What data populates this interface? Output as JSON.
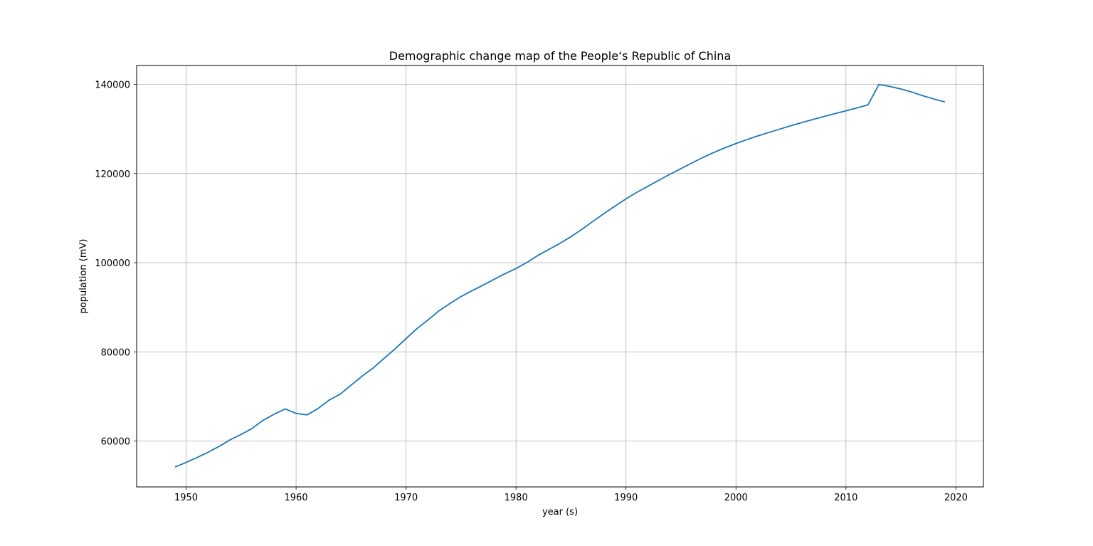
{
  "chart_data": {
    "type": "line",
    "title": "Demographic change map of the People‘s Republic of China",
    "xlabel": "year (s)",
    "ylabel": "population (mV)",
    "xlim": [
      1945.5,
      2022.5
    ],
    "ylim": [
      49700,
      144250
    ],
    "xticks": [
      1950,
      1960,
      1970,
      1980,
      1990,
      2000,
      2010,
      2020
    ],
    "yticks": [
      60000,
      80000,
      100000,
      120000,
      140000
    ],
    "grid": true,
    "series": [
      {
        "color": "#1f77b4",
        "x": [
          1949,
          1950,
          1951,
          1952,
          1953,
          1954,
          1955,
          1956,
          1957,
          1958,
          1959,
          1960,
          1961,
          1962,
          1963,
          1964,
          1965,
          1966,
          1967,
          1968,
          1969,
          1970,
          1971,
          1972,
          1973,
          1974,
          1975,
          1976,
          1977,
          1978,
          1979,
          1980,
          1981,
          1982,
          1983,
          1984,
          1985,
          1986,
          1987,
          1988,
          1989,
          1990,
          1991,
          1992,
          1993,
          1994,
          1995,
          1996,
          1997,
          1998,
          1999,
          2000,
          2001,
          2002,
          2003,
          2004,
          2005,
          2006,
          2007,
          2008,
          2009,
          2010,
          2011,
          2012,
          2013,
          2014,
          2015,
          2016,
          2017,
          2018,
          2019
        ],
        "y": [
          54167,
          55196,
          56300,
          57482,
          58796,
          60266,
          61465,
          62828,
          64653,
          65994,
          67207,
          66207,
          65859,
          67296,
          69172,
          70499,
          72538,
          74542,
          76368,
          78534,
          80671,
          82992,
          85229,
          87177,
          89211,
          90859,
          92420,
          93717,
          94974,
          96259,
          97542,
          98705,
          100072,
          101654,
          103008,
          104357,
          105851,
          107507,
          109300,
          111026,
          112704,
          114333,
          115823,
          117171,
          118517,
          119850,
          121121,
          122389,
          123626,
          124761,
          125786,
          126743,
          127627,
          128453,
          129227,
          129988,
          130756,
          131448,
          132129,
          132802,
          133450,
          134091,
          134735,
          135404,
          139999,
          139538,
          138989,
          138271,
          137462,
          136733,
          136075
        ]
      }
    ]
  }
}
